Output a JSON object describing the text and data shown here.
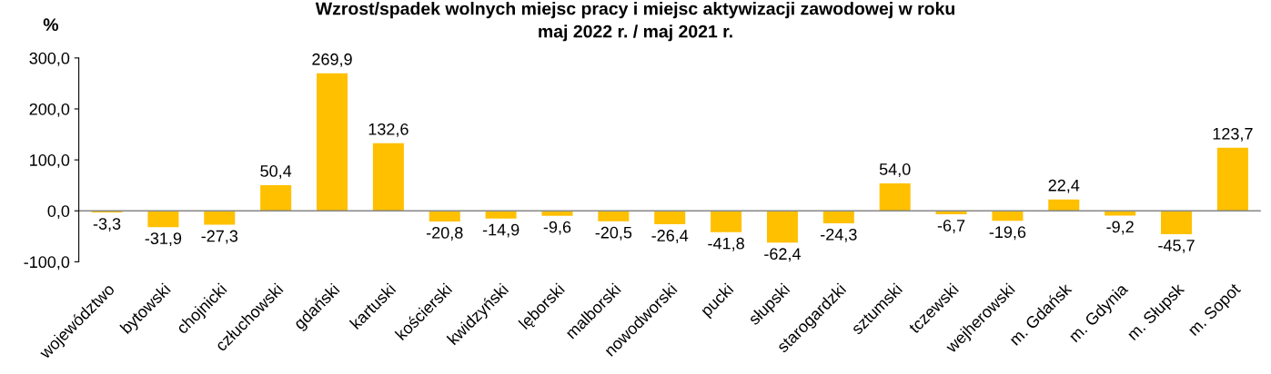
{
  "chart_data": {
    "type": "bar",
    "title": "Wzrost/spadek wolnych miejsc pracy i miejsc aktywizacji zawodowej w roku\nmaj 2022 r. / maj 2021 r.",
    "ylabel": "%",
    "categories": [
      "województwo",
      "bytowski",
      "chojnicki",
      "człuchowski",
      "gdański",
      "kartuski",
      "kościerski",
      "kwidzyński",
      "lęborski",
      "malborski",
      "nowodworski",
      "pucki",
      "słupski",
      "starogardzki",
      "sztumski",
      "tczewski",
      "wejherowski",
      "m. Gdańsk",
      "m. Gdynia",
      "m. Słupsk",
      "m. Sopot"
    ],
    "values": [
      -3.3,
      -31.9,
      -27.3,
      50.4,
      269.9,
      132.6,
      -20.8,
      -14.9,
      -9.6,
      -20.5,
      -26.4,
      -41.8,
      -62.4,
      -24.3,
      54.0,
      -6.7,
      -19.6,
      22.4,
      -9.2,
      -45.7,
      123.7
    ],
    "value_labels": [
      "-3,3",
      "-31,9",
      "-27,3",
      "50,4",
      "269,9",
      "132,6",
      "-20,8",
      "-14,9",
      "-9,6",
      "-20,5",
      "-26,4",
      "-41,8",
      "-62,4",
      "-24,3",
      "54,0",
      "-6,7",
      "-19,6",
      "22,4",
      "-9,2",
      "-45,7",
      "123,7"
    ],
    "color": "#ffc000",
    "ylim": [
      -100,
      300
    ],
    "yticks": [
      {
        "value": -100,
        "label": "-100,0"
      },
      {
        "value": 0,
        "label": "0,0"
      },
      {
        "value": 100,
        "label": "100,0"
      },
      {
        "value": 200,
        "label": "200,0"
      },
      {
        "value": 300,
        "label": "300,0"
      }
    ],
    "legend": false
  }
}
